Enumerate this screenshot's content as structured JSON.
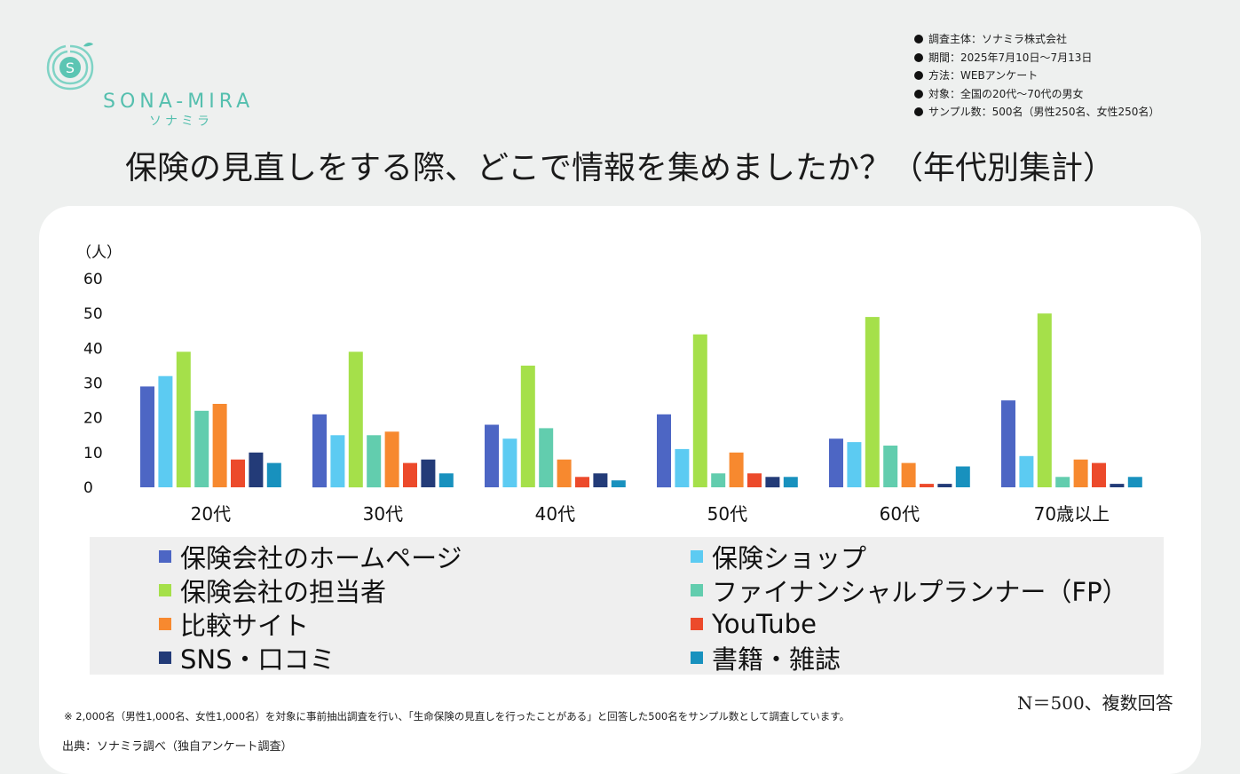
{
  "brand": {
    "name_en": "SONA-MIRA",
    "name_jp": "ソナミラ",
    "mark_letter": "S"
  },
  "survey_info": [
    "調査主体：ソナミラ株式会社",
    "期間：2025年7月10日～7月13日",
    "方法：WEBアンケート",
    "対象：全国の20代～70代の男女",
    "サンプル数：500名（男性250名、女性250名）"
  ],
  "n_note": "N＝500、複数回答",
  "footnote": "※ 2,000名（男性1,000名、女性1,000名）を対象に事前抽出調査を行い、「生命保険の見直しを行ったことがある」と回答した500名をサンプル数として調査しています。",
  "source": "出典：ソナミラ調べ（独自アンケート調査）",
  "colors": {
    "background": "#eef0ef",
    "panel": "#ffffff",
    "brand": "#54bfae"
  },
  "chart_data": {
    "type": "bar",
    "title": "保険の見直しをする際、どこで情報を集めましたか？（年代別集計）",
    "ylabel": "（人）",
    "xlabel": "",
    "ylim": [
      0,
      60
    ],
    "yticks": [
      0,
      10,
      20,
      30,
      40,
      50,
      60
    ],
    "grid": false,
    "legend_position": "bottom",
    "categories": [
      "20代",
      "30代",
      "40代",
      "50代",
      "60代",
      "70歳以上"
    ],
    "series": [
      {
        "name": "保険会社のホームページ",
        "color": "#4d66c4",
        "values": [
          29,
          21,
          18,
          21,
          14,
          25
        ]
      },
      {
        "name": "保険ショップ",
        "color": "#5ccbf2",
        "values": [
          32,
          15,
          14,
          11,
          13,
          9
        ]
      },
      {
        "name": "保険会社の担当者",
        "color": "#a5e04a",
        "values": [
          39,
          39,
          35,
          44,
          49,
          50
        ]
      },
      {
        "name": "ファイナンシャルプランナー（FP）",
        "color": "#62cdae",
        "values": [
          22,
          15,
          17,
          4,
          12,
          3
        ]
      },
      {
        "name": "比較サイト",
        "color": "#f7892f",
        "values": [
          24,
          16,
          8,
          10,
          7,
          8
        ]
      },
      {
        "name": "YouTube",
        "color": "#ec4a2b",
        "values": [
          8,
          7,
          3,
          4,
          1,
          7
        ]
      },
      {
        "name": "SNS・口コミ",
        "color": "#233b78",
        "values": [
          10,
          8,
          4,
          3,
          1,
          1
        ]
      },
      {
        "name": "書籍・雑誌",
        "color": "#1891be",
        "values": [
          7,
          4,
          2,
          3,
          6,
          3
        ]
      }
    ]
  }
}
